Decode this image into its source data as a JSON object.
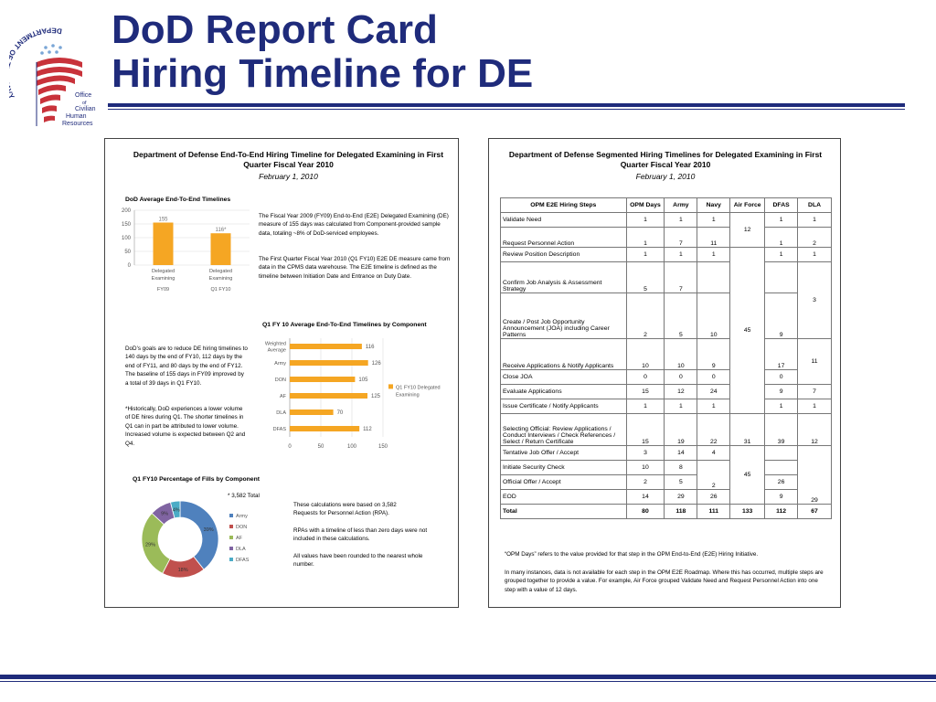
{
  "logo": {
    "ring_text": "DEPARTMENT OF THE NAVY",
    "office_lines": [
      "Office",
      "of",
      "Civilian",
      "Human",
      "Resources"
    ],
    "icon": "navy-ochr-flag-seal-icon",
    "colors": {
      "navy": "#1f2b7b",
      "red": "#c8323a"
    }
  },
  "title": {
    "line1": "DoD Report Card",
    "line2": "Hiring Timeline for DE"
  },
  "left_panel": {
    "title": "Department of Defense End-To-End Hiring Timeline for Delegated Examining in First Quarter Fiscal Year 2010",
    "date": "February 1, 2010",
    "avg_chart_title": "DoD Average End-To-End Timelines",
    "para1": "The Fiscal Year 2009 (FY09) End-to-End (E2E) Delegated Examining (DE) measure of 155 days was calculated from Component-provided sample data, totaling ~8% of DoD-serviced employees.",
    "para2": "The First Quarter Fiscal Year 2010 (Q1 FY10) E2E DE measure came from data in the CPMS data warehouse. The E2E timeline is defined as the timeline between Initiation Date and Entrance on Duty Date.",
    "component_chart_title": "Q1 FY 10 Average End-To-End Timelines by Component",
    "goals_text": "DoD’s goals are to reduce DE hiring timelines to 140 days by the end of FY10, 112 days by the end of FY11, and 80 days by the end of FY12. The baseline of 155 days in FY09 improved by a total of 39 days in Q1 FY10.",
    "historical_text": "*Historically, DoD experiences a lower volume of DE hires during Q1. The shorter timelines in Q1 can in part be attributed to lower volume. Increased volume is expected between Q2 and Q4.",
    "pie_title": "Q1 FY10 Percentage of Fills by Component",
    "pie_note": "* 3,582 Total",
    "calc_text1": "These calculations were based on 3,582 Requests for Personnel Action (RPA).",
    "calc_text2": "RPAs with a timeline of less than zero days were not included in these calculations.",
    "calc_text3": "All values have been rounded to the nearest whole number."
  },
  "right_panel": {
    "title": "Department of Defense Segmented Hiring Timelines for Delegated Examining in First Quarter Fiscal Year 2010",
    "date": "February 1, 2010",
    "headers": [
      "OPM E2E Hiring Steps",
      "OPM Days",
      "Army",
      "Navy",
      "Air Force",
      "DFAS",
      "DLA"
    ],
    "rows": [
      {
        "step": "Validate Need",
        "opm": "1",
        "army": "1",
        "navy": "1",
        "dfas": "1",
        "dla": "1"
      },
      {
        "step": "Request Personnel Action",
        "opm": "1",
        "army": "7",
        "navy": "11",
        "dfas": "1",
        "dla": "2"
      },
      {
        "step": "Review Position Description",
        "opm": "1",
        "army": "1",
        "navy": "1",
        "dfas": "1",
        "dla": "1"
      },
      {
        "step": "Confirm Job Analysis & Assessment Strategy",
        "opm": "5",
        "army": "7"
      },
      {
        "step": "Create / Post Job Opportunity Announcement (JOA) including Career Patterns",
        "opm": "2",
        "army": "5",
        "navy": "10",
        "dfas": "9"
      },
      {
        "step": "Receive Applications & Notify Applicants",
        "opm": "10",
        "army": "10",
        "navy": "9",
        "dfas": "17"
      },
      {
        "step": "Close JOA",
        "opm": "0",
        "army": "0",
        "navy": "0",
        "dfas": "0"
      },
      {
        "step": "Evaluate Applications",
        "opm": "15",
        "army": "12",
        "navy": "24",
        "dfas": "9",
        "dla": "7"
      },
      {
        "step": "Issue Certificate / Notify Applicants",
        "opm": "1",
        "army": "1",
        "navy": "1",
        "dfas": "1",
        "dla": "1"
      },
      {
        "step": "Selecting Official: Review Applications / Conduct Interviews / Check References / Select / Return Certificate",
        "opm": "15",
        "army": "19",
        "navy": "22",
        "af": "31",
        "dfas": "39",
        "dla": "12"
      },
      {
        "step": "Tentative Job Offer / Accept",
        "opm": "3",
        "army": "14",
        "navy": "4"
      },
      {
        "step": "Initiate Security Check",
        "opm": "10",
        "army": "8"
      },
      {
        "step": "Official Offer / Accept",
        "opm": "2",
        "army": "5",
        "navy": "2",
        "dfas": "26"
      },
      {
        "step": "EOD",
        "opm": "14",
        "army": "29",
        "navy": "26",
        "af": "45",
        "dfas": "9",
        "dla": "29"
      },
      {
        "step": "Total",
        "opm": "80",
        "army": "118",
        "navy": "111",
        "af": "133",
        "dfas": "112",
        "dla": "67"
      }
    ],
    "merged": {
      "af_validate_request": "12",
      "af_review_to_issue": "45",
      "dla_confirm_create": "3",
      "dla_receive_close": "11"
    },
    "note1": "“OPM Days” refers to the value provided for that step in the OPM End-to-End (E2E) Hiring Initiative.",
    "note2": "In many instances, data is not available for each step in the OPM E2E Roadmap. Where this has occurred, multiple steps are grouped together to provide a value. For example, Air Force grouped Validate Need and Request Personnel Action into one step with a value of 12 days."
  },
  "chart_data": [
    {
      "type": "bar",
      "title": "DoD Average End-To-End Timelines",
      "categories": [
        "Delegated Examining FY09",
        "Delegated Examining Q1 FY10"
      ],
      "category_labels": [
        [
          "Delegated",
          "Examining",
          "FY09"
        ],
        [
          "Delegated",
          "Examining",
          "Q1 FY10"
        ]
      ],
      "values": [
        155,
        116
      ],
      "data_labels": [
        "155",
        "116*"
      ],
      "ylim": [
        0,
        200
      ],
      "yticks": [
        0,
        50,
        100,
        150,
        200
      ],
      "color": "#f5a623",
      "grid": true
    },
    {
      "type": "bar",
      "orientation": "horizontal",
      "title": "Q1 FY 10 Average End-To-End Timelines by Component",
      "categories": [
        "Weighted Average",
        "Army",
        "DON",
        "AF",
        "DLA",
        "DFAS"
      ],
      "category_labels": [
        [
          "Weighted",
          "Average"
        ],
        [
          "Army"
        ],
        [
          "DON"
        ],
        [
          "AF"
        ],
        [
          "DLA"
        ],
        [
          "DFAS"
        ]
      ],
      "values": [
        116,
        126,
        105,
        125,
        70,
        112
      ],
      "xlim": [
        0,
        150
      ],
      "xticks": [
        0,
        50,
        100,
        150
      ],
      "legend": [
        "Q1 FY10 Delegated",
        "Examining"
      ],
      "legend_placement": "right",
      "color": "#f5a623",
      "grid": true
    },
    {
      "type": "pie",
      "subtype": "donut",
      "title": "Q1 FY10 Percentage of Fills by Component",
      "slices": [
        {
          "label": "Army",
          "value": 39,
          "text": "39%",
          "color": "#4f81bd"
        },
        {
          "label": "DON",
          "value": 18,
          "text": "18%",
          "color": "#c0504d"
        },
        {
          "label": "AF",
          "value": 29,
          "text": "29%",
          "color": "#9bbb59"
        },
        {
          "label": "DLA",
          "value": 9,
          "text": "9%",
          "color": "#8064a2"
        },
        {
          "label": "DFAS",
          "value": 4,
          "text": "4%",
          "color": "#4bacc6"
        }
      ],
      "legend_placement": "right"
    }
  ]
}
